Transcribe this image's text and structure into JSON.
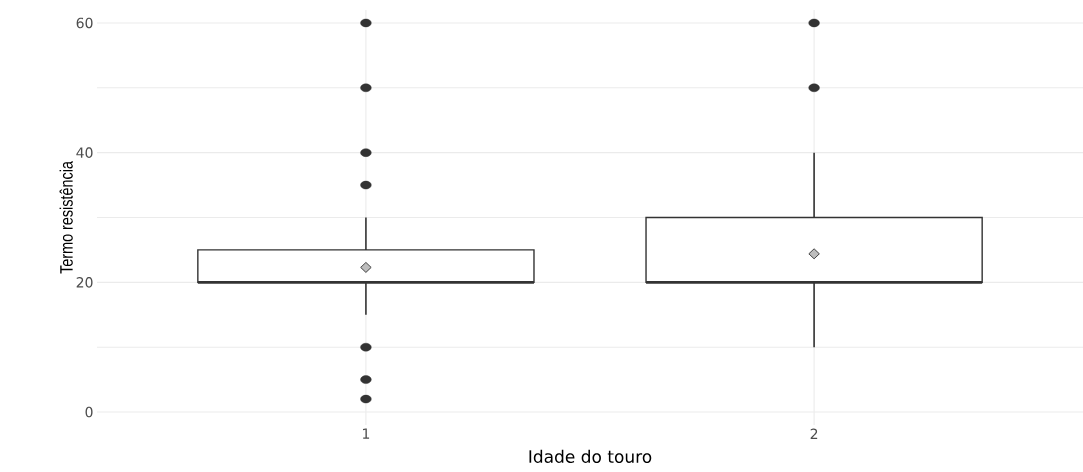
{
  "chart_data": {
    "type": "box",
    "xlabel": "Idade do touro",
    "ylabel": "Termo resistência",
    "categories": [
      "1",
      "2"
    ],
    "boxes": [
      {
        "low": 15,
        "q1": 20,
        "median": 20,
        "q3": 25,
        "high": 30,
        "mean": 22.3,
        "outliers": [
          60,
          50,
          40,
          35,
          10,
          5,
          2
        ]
      },
      {
        "low": 10,
        "q1": 20,
        "median": 20,
        "q3": 30,
        "high": 40,
        "mean": 24.4,
        "outliers": [
          60,
          50
        ]
      }
    ],
    "color": "#333333",
    "ylim": [
      -2,
      62
    ],
    "yticks": [
      0,
      {
        "value": 10,
        "label": null
      },
      20,
      {
        "value": 30,
        "label": null
      },
      40,
      {
        "value": 50,
        "label": null
      },
      60
    ],
    "grid": true
  }
}
